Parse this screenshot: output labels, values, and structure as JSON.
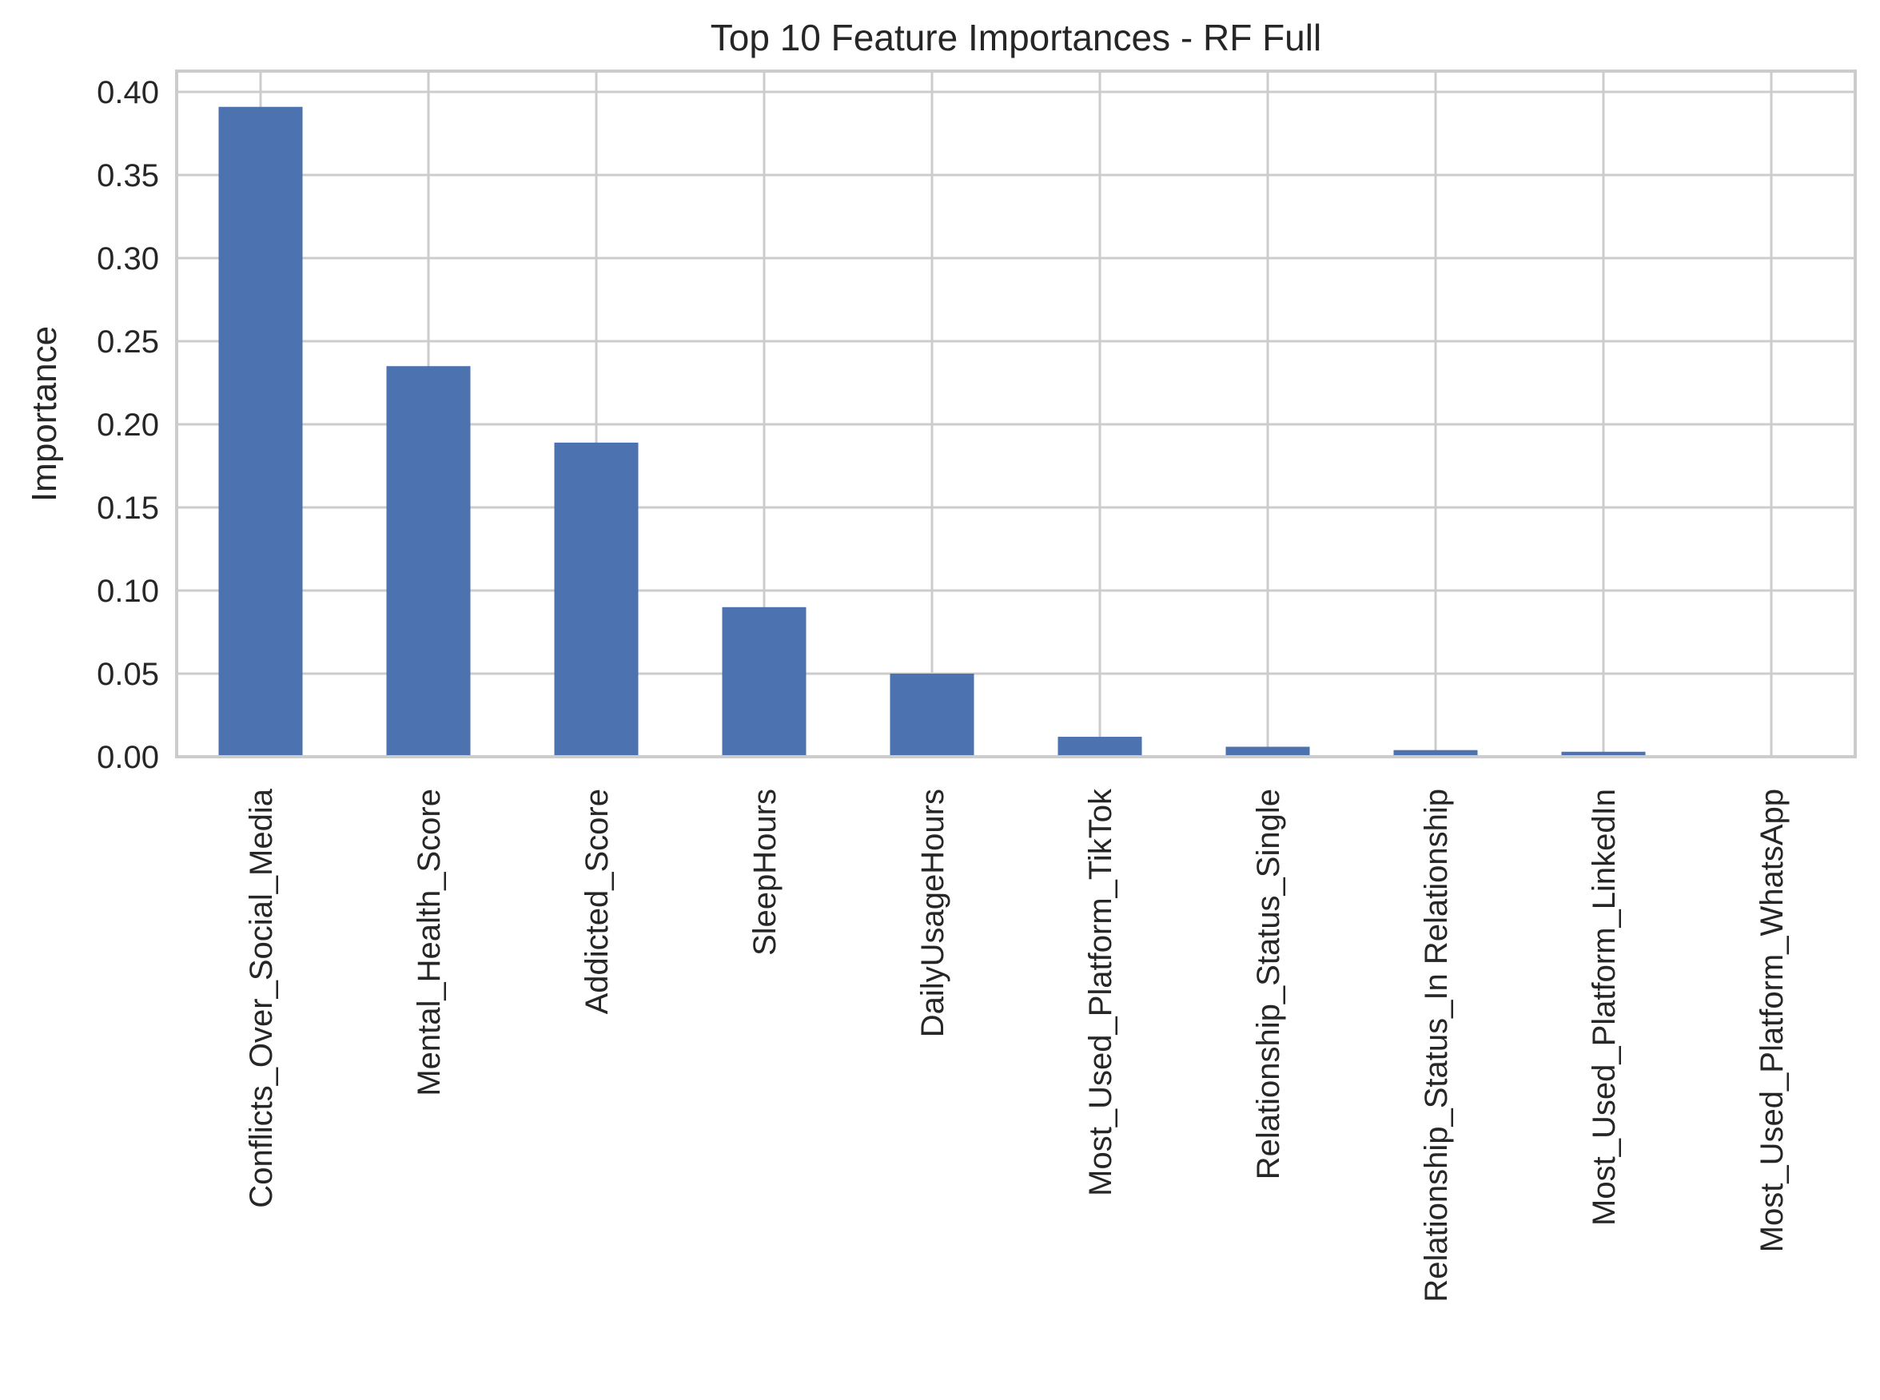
{
  "chart_data": {
    "type": "bar",
    "title": "Top 10 Feature Importances - RF Full",
    "xlabel": "",
    "ylabel": "Importance",
    "categories": [
      "Conflicts_Over_Social_Media",
      "Mental_Health_Score",
      "Addicted_Score",
      "SleepHours",
      "DailyUsageHours",
      "Most_Used_Platform_TikTok",
      "Relationship_Status_Single",
      "Relationship_Status_In Relationship",
      "Most_Used_Platform_LinkedIn",
      "Most_Used_Platform_WhatsApp"
    ],
    "values": [
      0.391,
      0.235,
      0.189,
      0.09,
      0.05,
      0.012,
      0.006,
      0.004,
      0.003,
      0.0
    ],
    "ylim": [
      0,
      0.4125
    ],
    "yticks": [
      "0.00",
      "0.05",
      "0.10",
      "0.15",
      "0.20",
      "0.25",
      "0.30",
      "0.35",
      "0.40"
    ],
    "grid": true,
    "colors": {
      "bar": "#4c72b0",
      "grid": "#cccccc",
      "frame": "#cccccc",
      "text": "#262626"
    }
  }
}
